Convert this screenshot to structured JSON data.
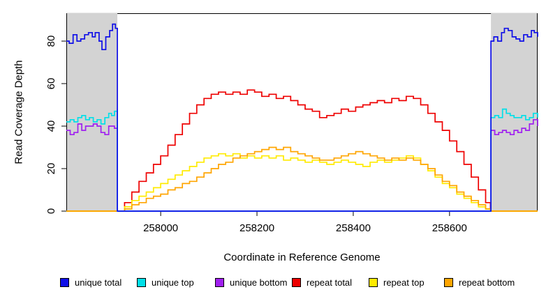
{
  "chart_data": {
    "type": "line",
    "title": "",
    "xlabel": "Coordinate in Reference Genome",
    "ylabel": "Read Coverage Depth",
    "xlim": [
      257804,
      258783
    ],
    "ylim": [
      0,
      93
    ],
    "x_ticks": [
      "258000",
      "258200",
      "258400",
      "258600"
    ],
    "x_tick_values": [
      258000,
      258200,
      258400,
      258600
    ],
    "y_ticks": [
      "0",
      "20",
      "40",
      "60",
      "80"
    ],
    "y_tick_values": [
      0,
      20,
      40,
      60,
      80
    ],
    "grid": "off",
    "legend_position": "bottom",
    "shaded_region_color": "#d3d3d3",
    "shaded_regions": [
      {
        "x0": 257804,
        "x1": 257910
      },
      {
        "x0": 258686,
        "x1": 258783
      }
    ],
    "series": [
      {
        "name": "unique total",
        "color": "#0f0fe8",
        "z": 6,
        "points": [
          [
            257804,
            80
          ],
          [
            257810,
            79
          ],
          [
            257818,
            83
          ],
          [
            257826,
            80
          ],
          [
            257834,
            81
          ],
          [
            257842,
            83
          ],
          [
            257850,
            84
          ],
          [
            257858,
            82
          ],
          [
            257864,
            84
          ],
          [
            257872,
            80
          ],
          [
            257878,
            76
          ],
          [
            257886,
            82
          ],
          [
            257894,
            85
          ],
          [
            257900,
            88
          ],
          [
            257906,
            86
          ],
          [
            257910,
            84
          ],
          [
            257910,
            0
          ],
          [
            258686,
            0
          ],
          [
            258686,
            80
          ],
          [
            258692,
            82
          ],
          [
            258700,
            80
          ],
          [
            258708,
            84
          ],
          [
            258714,
            86
          ],
          [
            258722,
            85
          ],
          [
            258730,
            82
          ],
          [
            258738,
            81
          ],
          [
            258746,
            80
          ],
          [
            258754,
            83
          ],
          [
            258762,
            82
          ],
          [
            258770,
            85
          ],
          [
            258776,
            84
          ],
          [
            258783,
            82
          ]
        ]
      },
      {
        "name": "unique top",
        "color": "#00dfe8",
        "z": 5,
        "points": [
          [
            257804,
            42
          ],
          [
            257812,
            43
          ],
          [
            257820,
            42
          ],
          [
            257828,
            44
          ],
          [
            257836,
            45
          ],
          [
            257844,
            43
          ],
          [
            257852,
            44
          ],
          [
            257860,
            42
          ],
          [
            257868,
            43
          ],
          [
            257876,
            41
          ],
          [
            257884,
            44
          ],
          [
            257892,
            46
          ],
          [
            257898,
            45
          ],
          [
            257904,
            47
          ],
          [
            257910,
            48
          ],
          [
            257910,
            0
          ],
          [
            258686,
            0
          ],
          [
            258686,
            44
          ],
          [
            258694,
            45
          ],
          [
            258702,
            44
          ],
          [
            258710,
            48
          ],
          [
            258718,
            46
          ],
          [
            258726,
            45
          ],
          [
            258734,
            44
          ],
          [
            258742,
            44
          ],
          [
            258750,
            45
          ],
          [
            258758,
            43
          ],
          [
            258766,
            44
          ],
          [
            258774,
            46
          ],
          [
            258783,
            44
          ]
        ]
      },
      {
        "name": "unique bottom",
        "color": "#a020f0",
        "z": 4,
        "points": [
          [
            257804,
            38
          ],
          [
            257812,
            36
          ],
          [
            257820,
            37
          ],
          [
            257828,
            41
          ],
          [
            257836,
            38
          ],
          [
            257844,
            40
          ],
          [
            257852,
            40
          ],
          [
            257860,
            41
          ],
          [
            257868,
            40
          ],
          [
            257876,
            37
          ],
          [
            257884,
            36
          ],
          [
            257892,
            40
          ],
          [
            257898,
            40
          ],
          [
            257904,
            39
          ],
          [
            257910,
            38
          ],
          [
            257910,
            0
          ],
          [
            258686,
            0
          ],
          [
            258686,
            38
          ],
          [
            258694,
            36
          ],
          [
            258702,
            37
          ],
          [
            258710,
            38
          ],
          [
            258718,
            37
          ],
          [
            258726,
            36
          ],
          [
            258734,
            38
          ],
          [
            258742,
            37
          ],
          [
            258750,
            39
          ],
          [
            258758,
            38
          ],
          [
            258766,
            41
          ],
          [
            258774,
            43
          ],
          [
            258783,
            40
          ]
        ]
      },
      {
        "name": "repeat total",
        "color": "#ee0000",
        "z": 1,
        "points": [
          [
            257804,
            0
          ],
          [
            257910,
            0
          ],
          [
            257925,
            4
          ],
          [
            257940,
            9
          ],
          [
            257955,
            14
          ],
          [
            257970,
            18
          ],
          [
            257985,
            22
          ],
          [
            258000,
            26
          ],
          [
            258015,
            31
          ],
          [
            258030,
            36
          ],
          [
            258045,
            41
          ],
          [
            258060,
            46
          ],
          [
            258075,
            50
          ],
          [
            258090,
            53
          ],
          [
            258105,
            55
          ],
          [
            258120,
            56
          ],
          [
            258135,
            55
          ],
          [
            258150,
            56
          ],
          [
            258165,
            55
          ],
          [
            258180,
            57
          ],
          [
            258195,
            56
          ],
          [
            258210,
            54
          ],
          [
            258225,
            55
          ],
          [
            258240,
            53
          ],
          [
            258255,
            54
          ],
          [
            258270,
            52
          ],
          [
            258285,
            50
          ],
          [
            258300,
            48
          ],
          [
            258315,
            47
          ],
          [
            258330,
            44
          ],
          [
            258345,
            45
          ],
          [
            258360,
            46
          ],
          [
            258375,
            48
          ],
          [
            258390,
            47
          ],
          [
            258405,
            49
          ],
          [
            258420,
            50
          ],
          [
            258435,
            51
          ],
          [
            258450,
            52
          ],
          [
            258465,
            51
          ],
          [
            258480,
            53
          ],
          [
            258495,
            52
          ],
          [
            258510,
            54
          ],
          [
            258525,
            53
          ],
          [
            258540,
            50
          ],
          [
            258555,
            46
          ],
          [
            258570,
            42
          ],
          [
            258585,
            38
          ],
          [
            258600,
            33
          ],
          [
            258615,
            28
          ],
          [
            258630,
            22
          ],
          [
            258645,
            16
          ],
          [
            258660,
            10
          ],
          [
            258675,
            4
          ],
          [
            258685,
            0
          ],
          [
            258783,
            0
          ]
        ]
      },
      {
        "name": "repeat top",
        "color": "#ffeb00",
        "z": 2,
        "points": [
          [
            257804,
            0
          ],
          [
            257910,
            0
          ],
          [
            257925,
            2
          ],
          [
            257940,
            5
          ],
          [
            257955,
            7
          ],
          [
            257970,
            9
          ],
          [
            257985,
            11
          ],
          [
            258000,
            13
          ],
          [
            258015,
            15
          ],
          [
            258030,
            17
          ],
          [
            258045,
            19
          ],
          [
            258060,
            21
          ],
          [
            258075,
            23
          ],
          [
            258090,
            25
          ],
          [
            258105,
            26
          ],
          [
            258120,
            27
          ],
          [
            258135,
            26
          ],
          [
            258150,
            27
          ],
          [
            258165,
            25
          ],
          [
            258180,
            26
          ],
          [
            258195,
            25
          ],
          [
            258210,
            26
          ],
          [
            258225,
            25
          ],
          [
            258240,
            26
          ],
          [
            258255,
            24
          ],
          [
            258270,
            25
          ],
          [
            258285,
            24
          ],
          [
            258300,
            23
          ],
          [
            258315,
            24
          ],
          [
            258330,
            23
          ],
          [
            258345,
            22
          ],
          [
            258360,
            23
          ],
          [
            258375,
            24
          ],
          [
            258390,
            23
          ],
          [
            258405,
            22
          ],
          [
            258420,
            21
          ],
          [
            258435,
            23
          ],
          [
            258450,
            24
          ],
          [
            258465,
            23
          ],
          [
            258480,
            24
          ],
          [
            258495,
            25
          ],
          [
            258510,
            26
          ],
          [
            258525,
            25
          ],
          [
            258540,
            22
          ],
          [
            258555,
            19
          ],
          [
            258570,
            16
          ],
          [
            258585,
            13
          ],
          [
            258600,
            11
          ],
          [
            258615,
            8
          ],
          [
            258630,
            6
          ],
          [
            258645,
            4
          ],
          [
            258660,
            2
          ],
          [
            258675,
            1
          ],
          [
            258685,
            0
          ],
          [
            258783,
            0
          ]
        ]
      },
      {
        "name": "repeat bottom",
        "color": "#ffa500",
        "z": 3,
        "points": [
          [
            257804,
            0
          ],
          [
            257910,
            0
          ],
          [
            257925,
            1
          ],
          [
            257940,
            3
          ],
          [
            257955,
            4
          ],
          [
            257970,
            6
          ],
          [
            257985,
            7
          ],
          [
            258000,
            8
          ],
          [
            258015,
            10
          ],
          [
            258030,
            11
          ],
          [
            258045,
            13
          ],
          [
            258060,
            14
          ],
          [
            258075,
            16
          ],
          [
            258090,
            18
          ],
          [
            258105,
            20
          ],
          [
            258120,
            22
          ],
          [
            258135,
            23
          ],
          [
            258150,
            25
          ],
          [
            258165,
            26
          ],
          [
            258180,
            27
          ],
          [
            258195,
            28
          ],
          [
            258210,
            29
          ],
          [
            258225,
            30
          ],
          [
            258240,
            29
          ],
          [
            258255,
            30
          ],
          [
            258270,
            28
          ],
          [
            258285,
            27
          ],
          [
            258300,
            26
          ],
          [
            258315,
            25
          ],
          [
            258330,
            24
          ],
          [
            258345,
            24
          ],
          [
            258360,
            25
          ],
          [
            258375,
            26
          ],
          [
            258390,
            27
          ],
          [
            258405,
            28
          ],
          [
            258420,
            27
          ],
          [
            258435,
            26
          ],
          [
            258450,
            25
          ],
          [
            258465,
            24
          ],
          [
            258480,
            25
          ],
          [
            258495,
            24
          ],
          [
            258510,
            25
          ],
          [
            258525,
            24
          ],
          [
            258540,
            22
          ],
          [
            258555,
            20
          ],
          [
            258570,
            17
          ],
          [
            258585,
            14
          ],
          [
            258600,
            12
          ],
          [
            258615,
            9
          ],
          [
            258630,
            7
          ],
          [
            258645,
            5
          ],
          [
            258660,
            3
          ],
          [
            258675,
            1
          ],
          [
            258685,
            0
          ],
          [
            258783,
            0
          ]
        ]
      }
    ]
  }
}
